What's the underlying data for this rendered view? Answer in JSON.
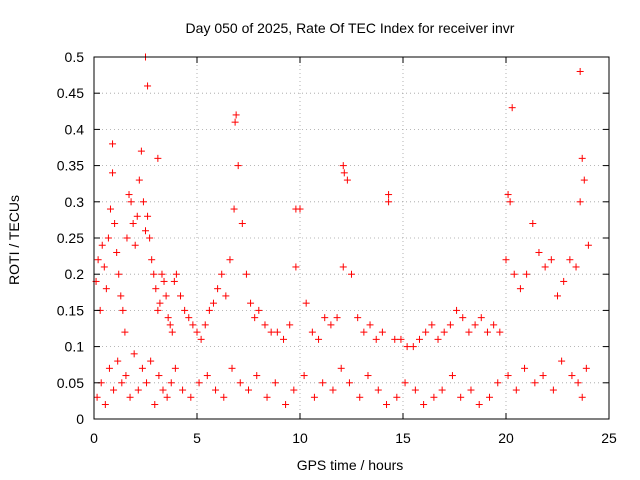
{
  "chart_data": {
    "type": "scatter",
    "title": "Day 050 of 2025, Rate Of TEC Index for receiver invr",
    "xlabel": "GPS time / hours",
    "ylabel": "ROTI / TECUs",
    "xlim": [
      0,
      25
    ],
    "ylim": [
      0,
      0.5
    ],
    "xticks": [
      0,
      5,
      10,
      15,
      20,
      25
    ],
    "xtick_labels": [
      "0",
      "5",
      "10",
      "15",
      "20",
      "25"
    ],
    "yticks": [
      0,
      0.05,
      0.1,
      0.15,
      0.2,
      0.25,
      0.3,
      0.35,
      0.4,
      0.45,
      0.5
    ],
    "ytick_labels": [
      "0",
      "0.05",
      "0.1",
      "0.15",
      "0.2",
      "0.25",
      "0.3",
      "0.35",
      "0.4",
      "0.45",
      "0.5"
    ],
    "grid": true,
    "marker": "+",
    "color": "#ff0000",
    "series": [
      {
        "name": "ROTI",
        "x": [
          0.1,
          0.2,
          0.3,
          0.4,
          0.5,
          0.6,
          0.7,
          0.8,
          0.9,
          1.0,
          1.1,
          1.2,
          1.3,
          1.4,
          1.5,
          1.6,
          1.7,
          1.8,
          1.9,
          2.0,
          2.1,
          2.2,
          2.3,
          2.4,
          2.5,
          2.6,
          2.7,
          2.8,
          2.9,
          3.0,
          3.1,
          3.2,
          3.3,
          3.4,
          3.5,
          3.6,
          3.7,
          3.8,
          3.9,
          4.0,
          4.2,
          4.4,
          4.6,
          4.8,
          5.0,
          5.2,
          5.4,
          5.6,
          5.8,
          6.0,
          6.2,
          6.4,
          6.6,
          6.8,
          7.0,
          7.2,
          7.4,
          7.6,
          7.8,
          8.0,
          8.3,
          8.6,
          8.9,
          9.2,
          9.5,
          9.8,
          10.0,
          10.3,
          10.6,
          10.9,
          11.2,
          11.5,
          11.8,
          12.1,
          12.3,
          12.5,
          12.8,
          13.1,
          13.4,
          13.7,
          14.0,
          14.3,
          14.6,
          14.9,
          15.2,
          15.5,
          15.8,
          16.1,
          16.4,
          16.7,
          17.0,
          17.3,
          17.6,
          17.9,
          18.2,
          18.5,
          18.8,
          19.1,
          19.4,
          19.7,
          20.0,
          20.2,
          20.4,
          20.7,
          21.0,
          21.3,
          21.6,
          21.9,
          22.2,
          22.5,
          22.8,
          23.1,
          23.4,
          23.6,
          23.8,
          24.0,
          0.15,
          0.35,
          0.55,
          0.75,
          0.95,
          1.15,
          1.35,
          1.55,
          1.75,
          1.95,
          2.15,
          2.35,
          2.55,
          2.75,
          2.95,
          3.15,
          3.35,
          3.55,
          3.75,
          3.95,
          4.3,
          4.7,
          5.1,
          5.5,
          5.9,
          6.3,
          6.7,
          7.1,
          7.5,
          7.9,
          8.4,
          8.8,
          9.3,
          9.7,
          10.2,
          10.7,
          11.1,
          11.6,
          12.0,
          12.4,
          12.9,
          13.3,
          13.8,
          14.2,
          14.7,
          15.1,
          15.6,
          16.0,
          16.5,
          16.9,
          17.4,
          17.8,
          18.3,
          18.7,
          19.2,
          19.6,
          20.1,
          20.5,
          20.9,
          21.4,
          21.8,
          22.3,
          22.7,
          23.2,
          23.5,
          23.7,
          23.9,
          2.5,
          2.6,
          0.9,
          3.1,
          6.9,
          6.85,
          12.1,
          12.15,
          14.3,
          20.1,
          20.3,
          23.6,
          23.7,
          9.8
        ],
        "y": [
          0.19,
          0.22,
          0.15,
          0.24,
          0.21,
          0.18,
          0.25,
          0.29,
          0.34,
          0.27,
          0.23,
          0.2,
          0.17,
          0.15,
          0.12,
          0.25,
          0.31,
          0.3,
          0.27,
          0.24,
          0.28,
          0.33,
          0.37,
          0.3,
          0.26,
          0.28,
          0.25,
          0.22,
          0.2,
          0.18,
          0.15,
          0.16,
          0.2,
          0.19,
          0.17,
          0.14,
          0.13,
          0.12,
          0.19,
          0.2,
          0.17,
          0.15,
          0.14,
          0.13,
          0.12,
          0.11,
          0.13,
          0.15,
          0.16,
          0.18,
          0.2,
          0.17,
          0.22,
          0.29,
          0.35,
          0.27,
          0.2,
          0.16,
          0.14,
          0.15,
          0.13,
          0.12,
          0.12,
          0.11,
          0.13,
          0.21,
          0.29,
          0.16,
          0.12,
          0.11,
          0.14,
          0.13,
          0.14,
          0.21,
          0.33,
          0.2,
          0.14,
          0.12,
          0.13,
          0.11,
          0.12,
          0.3,
          0.11,
          0.11,
          0.1,
          0.1,
          0.11,
          0.12,
          0.13,
          0.11,
          0.12,
          0.13,
          0.15,
          0.14,
          0.12,
          0.13,
          0.14,
          0.12,
          0.13,
          0.12,
          0.22,
          0.3,
          0.2,
          0.18,
          0.2,
          0.27,
          0.23,
          0.21,
          0.22,
          0.17,
          0.19,
          0.22,
          0.21,
          0.3,
          0.33,
          0.24,
          0.03,
          0.05,
          0.02,
          0.07,
          0.04,
          0.08,
          0.05,
          0.06,
          0.03,
          0.09,
          0.04,
          0.07,
          0.05,
          0.08,
          0.02,
          0.06,
          0.04,
          0.03,
          0.05,
          0.07,
          0.04,
          0.03,
          0.05,
          0.06,
          0.04,
          0.03,
          0.07,
          0.05,
          0.04,
          0.06,
          0.03,
          0.05,
          0.02,
          0.04,
          0.06,
          0.03,
          0.05,
          0.04,
          0.07,
          0.05,
          0.03,
          0.06,
          0.04,
          0.02,
          0.03,
          0.05,
          0.04,
          0.02,
          0.03,
          0.04,
          0.06,
          0.03,
          0.04,
          0.02,
          0.03,
          0.05,
          0.06,
          0.04,
          0.07,
          0.05,
          0.06,
          0.04,
          0.08,
          0.06,
          0.05,
          0.03,
          0.07,
          0.5,
          0.46,
          0.38,
          0.36,
          0.42,
          0.41,
          0.35,
          0.34,
          0.31,
          0.31,
          0.43,
          0.48,
          0.36,
          0.29
        ]
      }
    ]
  }
}
